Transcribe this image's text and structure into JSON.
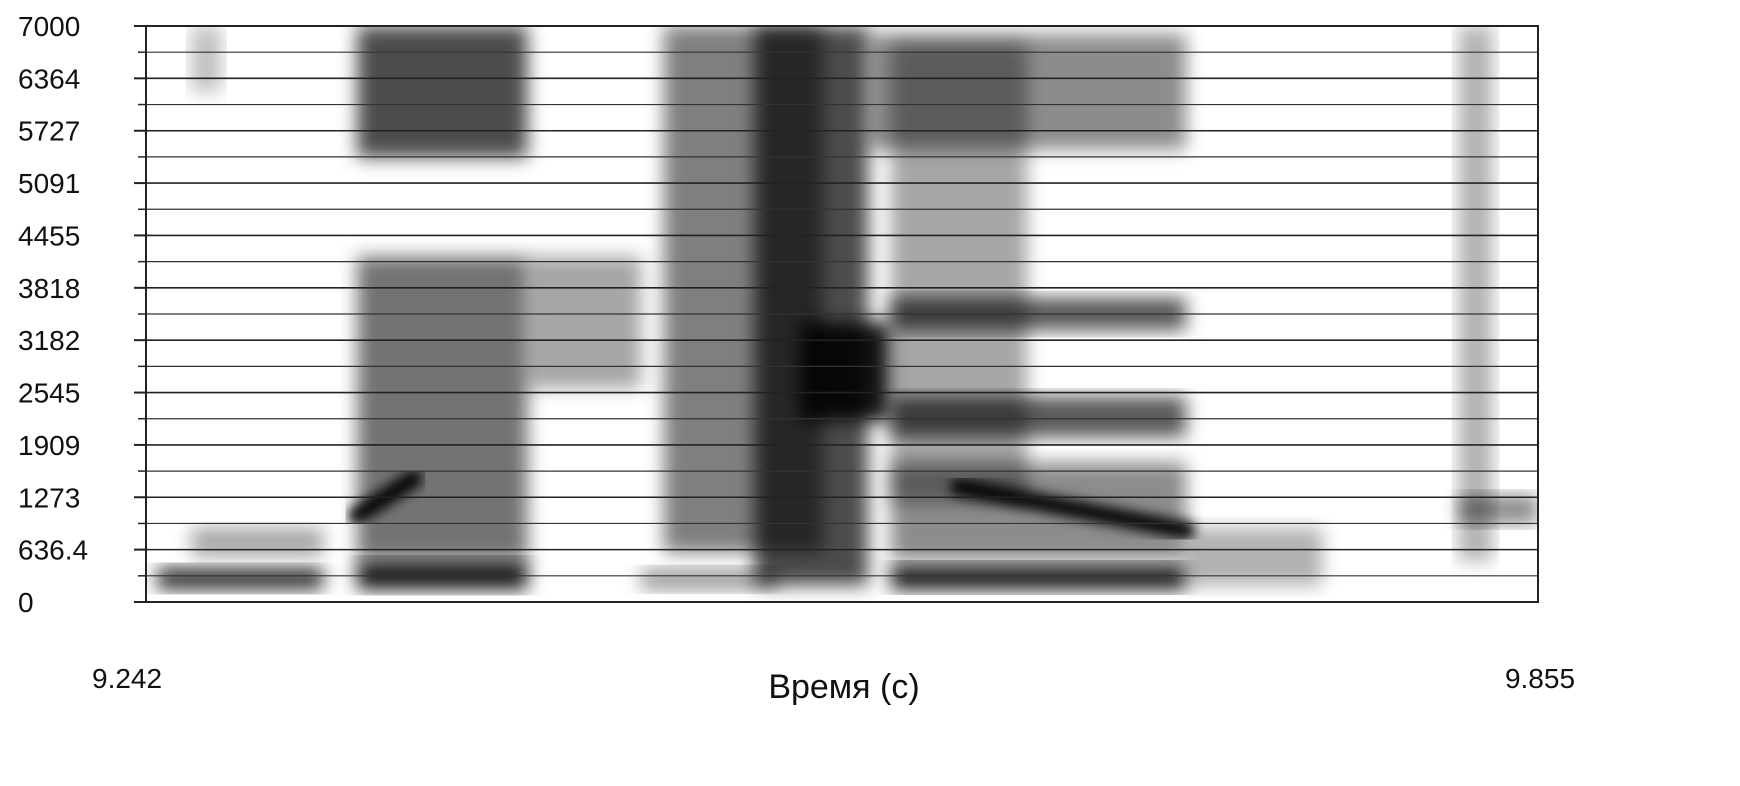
{
  "chart_data": {
    "type": "heatmap",
    "subtype": "spectrogram",
    "colormap": "grayscale (darker = higher intensity)",
    "grid": true,
    "xlabel": "Время (с)",
    "x_range": [
      9.242,
      9.855
    ],
    "x_tick_labels": [
      "9.242",
      "9.855"
    ],
    "ylabel": "",
    "ylim": [
      0,
      7000
    ],
    "y_tick_labels": [
      "0",
      "636.4",
      "1273",
      "1909",
      "2545",
      "3182",
      "3818",
      "4455",
      "5091",
      "5727",
      "6364",
      "7000"
    ],
    "y_ticks": [
      0,
      636.4,
      1273,
      1909,
      2545,
      3182,
      3818,
      4455,
      5091,
      5727,
      6364,
      7000
    ],
    "energy_regions": [
      {
        "t": [
          9.247,
          9.32
        ],
        "f": [
          150,
          420
        ],
        "intensity": 0.8
      },
      {
        "t": [
          9.262,
          9.32
        ],
        "f": [
          550,
          900
        ],
        "intensity": 0.35
      },
      {
        "t": [
          9.262,
          9.275
        ],
        "f": [
          6200,
          7000
        ],
        "intensity": 0.25
      },
      {
        "t": [
          9.335,
          9.41
        ],
        "f": [
          150,
          500
        ],
        "intensity": 0.9
      },
      {
        "t": [
          9.335,
          9.41
        ],
        "f": [
          500,
          4200
        ],
        "intensity": 0.55
      },
      {
        "t": [
          9.335,
          9.41
        ],
        "f": [
          5400,
          7000
        ],
        "intensity": 0.7
      },
      {
        "t": [
          9.41,
          9.46
        ],
        "f": [
          2600,
          4200
        ],
        "intensity": 0.35
      },
      {
        "t": [
          9.46,
          9.52
        ],
        "f": [
          150,
          400
        ],
        "intensity": 0.4
      },
      {
        "t": [
          9.47,
          9.54
        ],
        "f": [
          600,
          7000
        ],
        "intensity": 0.5
      },
      {
        "t": [
          9.51,
          9.56
        ],
        "f": [
          200,
          7000
        ],
        "intensity": 0.7
      },
      {
        "t": [
          9.53,
          9.57
        ],
        "f": [
          2200,
          3400
        ],
        "intensity": 0.9
      },
      {
        "t": [
          9.57,
          9.63
        ],
        "f": [
          1200,
          6800
        ],
        "intensity": 0.35
      },
      {
        "t": [
          9.57,
          9.7
        ],
        "f": [
          150,
          450
        ],
        "intensity": 0.9
      },
      {
        "t": [
          9.57,
          9.7
        ],
        "f": [
          500,
          1700
        ],
        "intensity": 0.45
      },
      {
        "t": [
          9.57,
          9.7
        ],
        "f": [
          2000,
          2500
        ],
        "intensity": 0.65
      },
      {
        "t": [
          9.57,
          9.7
        ],
        "f": [
          3300,
          3700
        ],
        "intensity": 0.65
      },
      {
        "t": [
          9.56,
          9.7
        ],
        "f": [
          5500,
          6900
        ],
        "intensity": 0.45
      },
      {
        "t": [
          9.7,
          9.76
        ],
        "f": [
          200,
          900
        ],
        "intensity": 0.3
      },
      {
        "t": [
          9.82,
          9.835
        ],
        "f": [
          500,
          7000
        ],
        "intensity": 0.3
      },
      {
        "t": [
          9.82,
          9.855
        ],
        "f": [
          950,
          1300
        ],
        "intensity": 0.45
      }
    ],
    "formant_tracks": [
      {
        "t": [
          9.335,
          9.36
        ],
        "f": [
          1050,
          1500
        ],
        "intensity": 0.95
      },
      {
        "t": [
          9.6,
          9.7
        ],
        "f": [
          1400,
          870
        ],
        "intensity": 0.95
      }
    ]
  },
  "icons": {
    "spectrogram": "spectrogram-image"
  }
}
